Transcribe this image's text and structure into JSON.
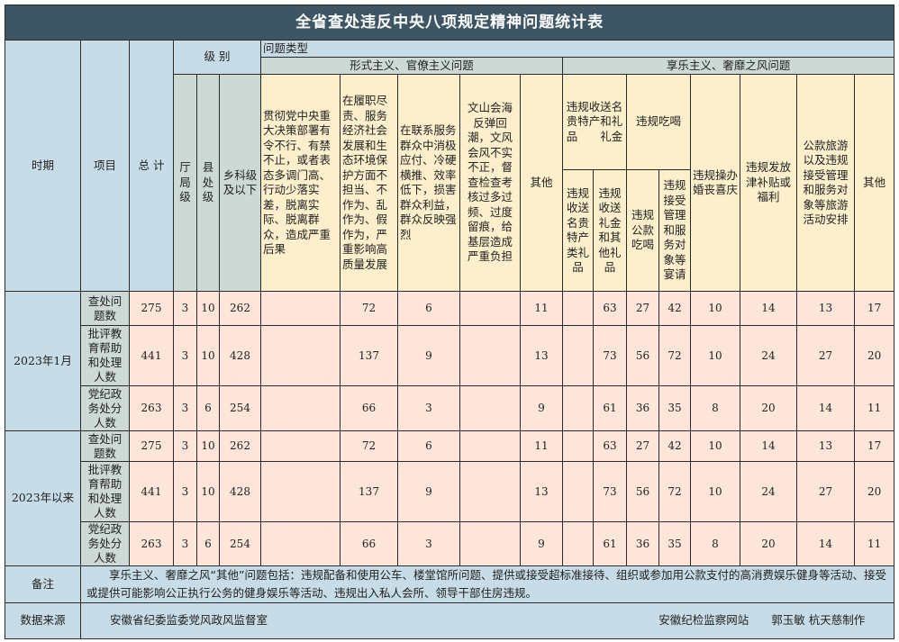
{
  "title": "全省查处违反中央八项规定精神问题统计表",
  "headers": {
    "period": "时期",
    "item": "项目",
    "total": "总 计",
    "level": "级 别",
    "problem_type": "问题类型",
    "levels": [
      "厅局级",
      "县处级",
      "乡科级及以下"
    ],
    "formalism": {
      "label": "形式主义、官僚主义问题",
      "columns": [
        "贯彻党中央重大决策部署有令不行、有禁不止，或者表态多调门高、行动少落实差，脱离实际、脱离群众，造成严重后果",
        "在履职尽责、服务经济社会发展和生态环境保护方面不担当、不作为、乱作为、假作为，严重影响高质量发展",
        "在联系服务群众中消极应付、冷硬横推、效率低下，损害群众利益，群众反映强烈",
        "文山会海反弹回潮，文风会风不实不正，督查检查考核过多过频、过度留痕，给基层造成严重负担",
        "其他"
      ]
    },
    "hedonism": {
      "label": "享乐主义、奢靡之风问题",
      "gifts": {
        "label": "违规收送名贵特产和礼品　　礼金",
        "sub": [
          "违规收送名贵特产类礼品",
          "违规收送礼金和其他礼品"
        ]
      },
      "dining": {
        "label": "违规吃喝",
        "sub": [
          "违规公款吃喝",
          "违规接受管理和服务对象等宴请"
        ]
      },
      "weddings": "违规操办婚丧喜庆",
      "allowances": "违规发放津补贴或福利",
      "travel": "公款旅游以及违规接受管理和服务对象等旅游活动安排",
      "other": "其他"
    }
  },
  "periods": [
    {
      "label": "2023年1月",
      "rows": [
        {
          "item": "查处问题数",
          "values": [
            "275",
            "3",
            "10",
            "262",
            "",
            "72",
            "6",
            "",
            "11",
            "",
            "63",
            "27",
            "42",
            "10",
            "14",
            "13",
            "17"
          ]
        },
        {
          "item": "批评教育帮助和处理人数",
          "values": [
            "441",
            "3",
            "10",
            "428",
            "",
            "137",
            "9",
            "",
            "13",
            "",
            "73",
            "56",
            "72",
            "10",
            "24",
            "27",
            "20"
          ]
        },
        {
          "item": "党纪政务处分人数",
          "values": [
            "263",
            "3",
            "6",
            "254",
            "",
            "66",
            "3",
            "",
            "9",
            "",
            "61",
            "36",
            "35",
            "8",
            "20",
            "14",
            "11"
          ]
        }
      ]
    },
    {
      "label": "2023年以来",
      "rows": [
        {
          "item": "查处问题数",
          "values": [
            "275",
            "3",
            "10",
            "262",
            "",
            "72",
            "6",
            "",
            "11",
            "",
            "63",
            "27",
            "42",
            "10",
            "14",
            "13",
            "17"
          ]
        },
        {
          "item": "批评教育帮助和处理人数",
          "values": [
            "441",
            "3",
            "10",
            "428",
            "",
            "137",
            "9",
            "",
            "13",
            "",
            "73",
            "56",
            "72",
            "10",
            "24",
            "27",
            "20"
          ]
        },
        {
          "item": "党纪政务处分人数",
          "values": [
            "263",
            "3",
            "6",
            "254",
            "",
            "66",
            "3",
            "",
            "9",
            "",
            "61",
            "36",
            "35",
            "8",
            "20",
            "14",
            "11"
          ]
        }
      ]
    }
  ],
  "note": {
    "label": "备注",
    "text": "享乐主义、奢靡之风“其他”问题包括：违规配备和使用公车、楼堂馆所问题、提供或接受超标准接待、组织或参加用公款支付的高消费娱乐健身等活动、接受或提供可能影响公正执行公务的健身娱乐等活动、违规出入私人会所、领导干部住房违规。"
  },
  "source": {
    "label": "数据来源",
    "org": "安徽省纪委监委党风政风监督室",
    "site": "安徽纪检监察网站",
    "credit": "郭玉敏 杭天慈制作"
  },
  "colors": {
    "title_bg": "#3e5664",
    "header_blue": "#c7dce6",
    "header_gray": "#cdd9d4",
    "header_yellow": "#fdefcb",
    "data_pink": "#fde5d9"
  }
}
